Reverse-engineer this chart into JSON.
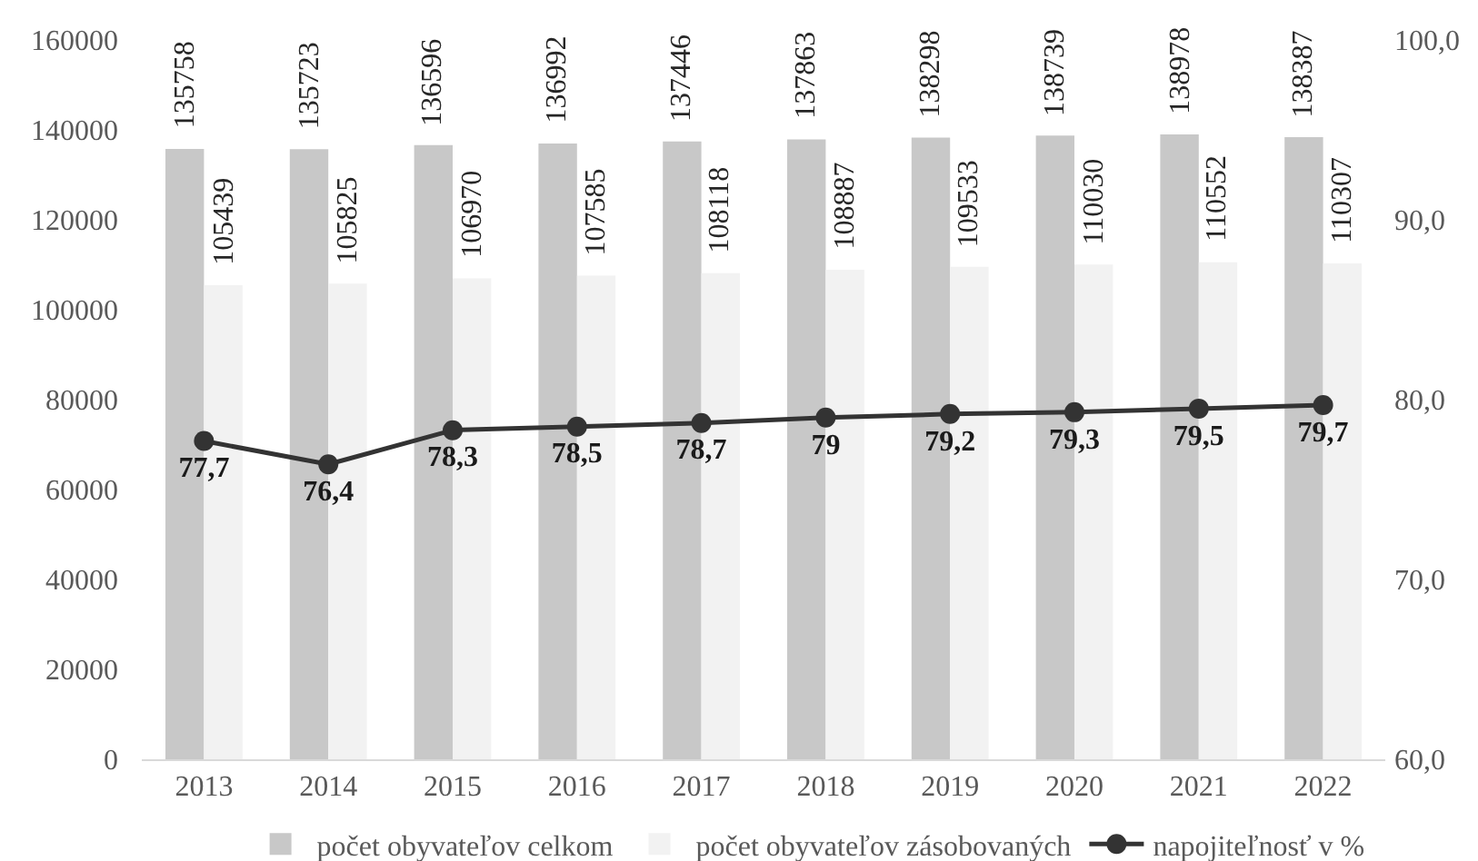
{
  "chart_data": {
    "type": "bar",
    "categories": [
      "2013",
      "2014",
      "2015",
      "2016",
      "2017",
      "2018",
      "2019",
      "2020",
      "2021",
      "2022"
    ],
    "series": [
      {
        "name": "počet obyvateľov celkom",
        "color": "#c8c8c8",
        "values": [
          135758,
          135723,
          136596,
          136992,
          137446,
          137863,
          138298,
          138739,
          138978,
          138387
        ]
      },
      {
        "name": "počet obyvateľov zásobovaných",
        "color": "#f2f2f2",
        "values": [
          105439,
          105825,
          106970,
          107585,
          108118,
          108887,
          109533,
          110030,
          110552,
          110307
        ]
      },
      {
        "name": "napojiteľnosť v %",
        "type": "line",
        "axis": "y2",
        "color": "#333333",
        "values": [
          77.7,
          76.4,
          78.3,
          78.5,
          78.7,
          79,
          79.2,
          79.3,
          79.5,
          79.7
        ],
        "value_labels": [
          "77,7",
          "76,4",
          "78,3",
          "78,5",
          "78,7",
          "79",
          "79,2",
          "79,3",
          "79,5",
          "79,7"
        ]
      }
    ],
    "ylim": [
      0,
      160000
    ],
    "yticks": [
      0,
      20000,
      40000,
      60000,
      80000,
      100000,
      120000,
      140000,
      160000
    ],
    "y2lim": [
      60,
      100
    ],
    "y2ticks": [
      {
        "value": 60,
        "label": "60,0"
      },
      {
        "value": 70,
        "label": "70,0"
      },
      {
        "value": 80,
        "label": "80,0"
      },
      {
        "value": 90,
        "label": "90,0"
      },
      {
        "value": 100,
        "label": "100,0"
      }
    ],
    "data_labels": true,
    "legend": "bottom",
    "marker": "circle",
    "grid": false
  }
}
